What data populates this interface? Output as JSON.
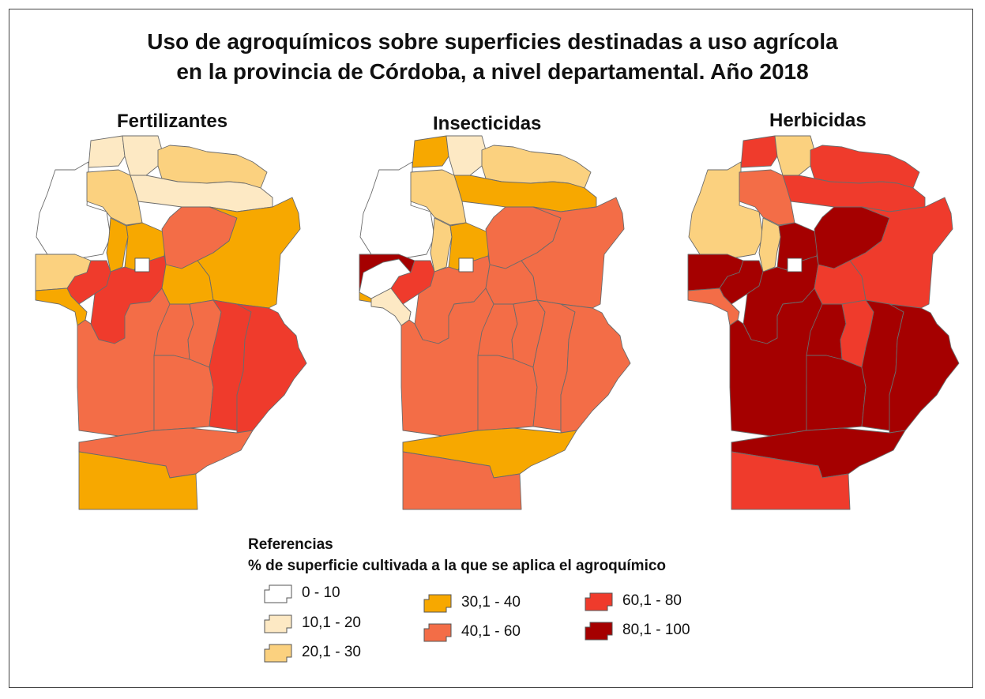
{
  "title_line1": "Uso de agroquímicos sobre superficies destinadas a uso agrícola",
  "title_line2": "en la provincia de Córdoba, a nivel departamental. Año 2018",
  "maps": [
    {
      "title": "Fertilizantes"
    },
    {
      "title": "Insecticidas"
    },
    {
      "title": "Herbicidas"
    }
  ],
  "legend": {
    "title": "Referencias",
    "subtitle": "% de superficie cultivada a la que se aplica el agroquímico",
    "classes": [
      {
        "label": "0 - 10",
        "color": "#ffffff"
      },
      {
        "label": "10,1 - 20",
        "color": "#fde9c4"
      },
      {
        "label": "20,1 - 30",
        "color": "#fbd17f"
      },
      {
        "label": "30,1 - 40",
        "color": "#f7a800"
      },
      {
        "label": "40,1 - 60",
        "color": "#f36d47"
      },
      {
        "label": "60,1 - 80",
        "color": "#ef3b2c"
      },
      {
        "label": "80,1 - 100",
        "color": "#a50000"
      }
    ]
  },
  "map_colors": {
    "fertilizantes": {
      "nw_white": 0,
      "north_w": 1,
      "north_c": 1,
      "north_e": 2,
      "north_band": 1,
      "west_upper": 2,
      "west_mid": 2,
      "mid_west_strip": 3,
      "center_left": 3,
      "center_upper": 4,
      "east_upper": 3,
      "west_small": 5,
      "west_lower": 3,
      "center": 5,
      "center_mid": 3,
      "south_w": 4,
      "south_c1": 4,
      "south_c2": 4,
      "south_c3": 4,
      "south_e1": 5,
      "south_e2": 5,
      "southmost_c": 4,
      "southmost_w": 3
    },
    "insecticidas": {
      "nw_white": 0,
      "north_w": 3,
      "north_c": 1,
      "north_e": 2,
      "north_band": 3,
      "west_upper": 2,
      "west_mid": 6,
      "mid_west_strip": 2,
      "center_left": 3,
      "center_upper": 4,
      "east_upper": 4,
      "west_small": 5,
      "west_lower": 3,
      "center": 4,
      "center_mid": 4,
      "south_w": 4,
      "south_c1": 4,
      "south_c2": 4,
      "south_c3": 4,
      "south_e1": 4,
      "south_e2": 4,
      "southmost_c": 3,
      "southmost_w": 4,
      "west_white": 0,
      "west_pale": 1
    },
    "herbicidas": {
      "nw_white": 2,
      "north_w": 5,
      "north_c": 2,
      "north_e": 5,
      "north_band": 5,
      "west_upper": 4,
      "west_mid": 6,
      "mid_west_strip": 2,
      "center_left": 6,
      "center_upper": 6,
      "east_upper": 5,
      "west_small": 6,
      "west_lower": 4,
      "center": 6,
      "center_mid": 5,
      "south_w": 6,
      "south_c1": 6,
      "south_c2": 5,
      "south_c3": 6,
      "south_e1": 6,
      "south_e2": 6,
      "southmost_c": 6,
      "southmost_w": 5
    }
  }
}
